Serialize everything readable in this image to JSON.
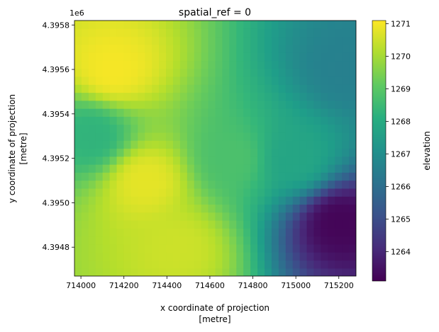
{
  "chart_data": {
    "type": "heatmap",
    "title": "spatial_ref = 0",
    "xlabel": "x coordinate of projection",
    "xlabel_units": "[metre]",
    "ylabel": "y coordinate of projection",
    "ylabel_units": "[metre]",
    "y_offset_label": "1e6",
    "xlim": [
      713970,
      715280
    ],
    "ylim": [
      4.39467,
      4.39582
    ],
    "x_ticks": [
      714000,
      714200,
      714400,
      714600,
      714800,
      715000,
      715200
    ],
    "y_ticks": [
      4.3948,
      4.395,
      4.3952,
      4.3954,
      4.3956,
      4.3958
    ],
    "y_tick_labels": [
      "4.3948",
      "4.3950",
      "4.3952",
      "4.3954",
      "4.3956",
      "4.3958"
    ],
    "colorbar": {
      "label": "elevation",
      "range": [
        1263.1,
        1271.1
      ],
      "ticks": [
        1264,
        1265,
        1266,
        1267,
        1268,
        1269,
        1270,
        1271
      ],
      "colormap": "viridis"
    },
    "field_description_points": [
      {
        "x": 714150,
        "y": 4.3956,
        "z": 1271.0
      },
      {
        "x": 714300,
        "y": 4.3951,
        "z": 1270.8
      },
      {
        "x": 714450,
        "y": 4.3948,
        "z": 1270.5
      },
      {
        "x": 714050,
        "y": 4.3953,
        "z": 1268.3
      },
      {
        "x": 714700,
        "y": 4.3952,
        "z": 1268.8
      },
      {
        "x": 715000,
        "y": 4.3952,
        "z": 1267.8
      },
      {
        "x": 715250,
        "y": 4.3956,
        "z": 1266.6
      },
      {
        "x": 715205,
        "y": 4.39491,
        "z": 1263.2
      }
    ]
  }
}
